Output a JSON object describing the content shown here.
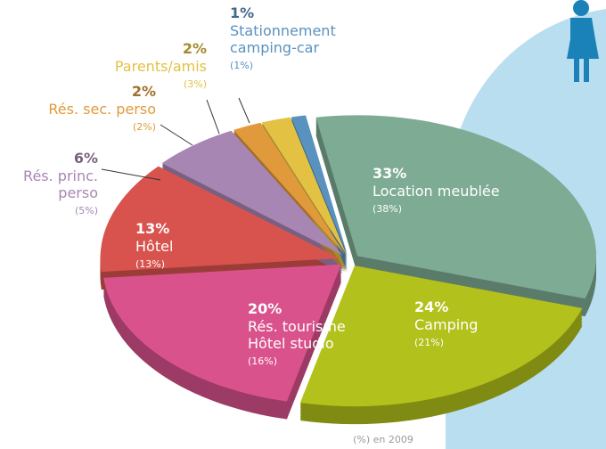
{
  "chart_data": {
    "type": "pie",
    "categories": [
      "Location meublée",
      "Camping",
      "Rés. tourisme\nHôtel studio",
      "Hôtel",
      "Rés. princ.\nperso",
      "Rés. sec. perso",
      "Parents/amis",
      "Stationnement\ncamping-car"
    ],
    "values": [
      33,
      24,
      20,
      13,
      6,
      2,
      2,
      1
    ],
    "value_labels": [
      "33%",
      "24%",
      "20%",
      "13%",
      "6%",
      "2%",
      "2%",
      "1%"
    ],
    "values_2009": [
      38,
      21,
      16,
      13,
      5,
      2,
      3,
      1
    ],
    "value_labels_2009": [
      "(38%)",
      "(21%)",
      "(16%)",
      "(13%)",
      "(5%)",
      "(2%)",
      "(3%)",
      "(1%)"
    ],
    "colors": [
      "#7eab94",
      "#b2c11b",
      "#d9528c",
      "#d9534e",
      "#a886b3",
      "#e09a3c",
      "#e3c143",
      "#5a92bf"
    ],
    "note": "(%) en 2009"
  }
}
